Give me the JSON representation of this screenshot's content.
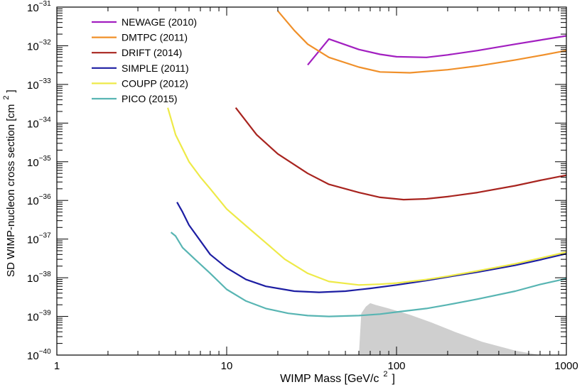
{
  "chart_data": {
    "type": "line",
    "xlabel_main": "WIMP Mass [GeV/c",
    "xlabel_sup": "2",
    "xlabel_tail": "]",
    "ylabel_main": "SD WIMP-nucleon cross section [cm",
    "ylabel_sup": "2",
    "ylabel_tail": "]",
    "x_scale": "log",
    "y_scale": "log",
    "xlim": [
      1,
      1000
    ],
    "ylim": [
      1e-40,
      1e-31
    ],
    "x_ticks": [
      {
        "value": 1,
        "label": "1"
      },
      {
        "value": 10,
        "label": "10"
      },
      {
        "value": 100,
        "label": "100"
      },
      {
        "value": 1000,
        "label": "1000"
      }
    ],
    "y_ticks": [
      {
        "value": 1e-40,
        "base": "10",
        "exp": "−40"
      },
      {
        "value": 1e-39,
        "base": "10",
        "exp": "−39"
      },
      {
        "value": 1e-38,
        "base": "10",
        "exp": "−38"
      },
      {
        "value": 1e-37,
        "base": "10",
        "exp": "−37"
      },
      {
        "value": 1e-36,
        "base": "10",
        "exp": "−36"
      },
      {
        "value": 1e-35,
        "base": "10",
        "exp": "−35"
      },
      {
        "value": 1e-34,
        "base": "10",
        "exp": "−34"
      },
      {
        "value": 1e-33,
        "base": "10",
        "exp": "−33"
      },
      {
        "value": 1e-32,
        "base": "10",
        "exp": "−32"
      },
      {
        "value": 1e-31,
        "base": "10",
        "exp": "−31"
      }
    ],
    "grid": false,
    "legend_position": "top-left",
    "series": [
      {
        "name": "NEWAGE (2010)",
        "color": "#a21fc0",
        "points": [
          [
            30,
            3.2e-33
          ],
          [
            40,
            1.5e-32
          ],
          [
            60,
            8e-33
          ],
          [
            80,
            6e-33
          ],
          [
            100,
            5.2e-33
          ],
          [
            150,
            5e-33
          ],
          [
            200,
            5.8e-33
          ],
          [
            300,
            7.5e-33
          ],
          [
            500,
            1.1e-32
          ],
          [
            700,
            1.4e-32
          ],
          [
            1000,
            1.8e-32
          ]
        ]
      },
      {
        "name": "DMTPC (2011)",
        "color": "#f0902a",
        "points": [
          [
            20,
            8e-32
          ],
          [
            25,
            2.5e-32
          ],
          [
            30,
            1.1e-32
          ],
          [
            40,
            5e-33
          ],
          [
            60,
            2.8e-33
          ],
          [
            80,
            2.1e-33
          ],
          [
            120,
            2e-33
          ],
          [
            200,
            2.4e-33
          ],
          [
            300,
            3e-33
          ],
          [
            500,
            4.3e-33
          ],
          [
            700,
            5.6e-33
          ],
          [
            1000,
            7.5e-33
          ]
        ]
      },
      {
        "name": "DRIFT (2014)",
        "color": "#a8241f",
        "points": [
          [
            11.3,
            2.5e-34
          ],
          [
            15,
            5e-35
          ],
          [
            20,
            1.6e-35
          ],
          [
            30,
            5e-36
          ],
          [
            40,
            2.6e-36
          ],
          [
            60,
            1.6e-36
          ],
          [
            80,
            1.2e-36
          ],
          [
            110,
            1.05e-36
          ],
          [
            150,
            1.1e-36
          ],
          [
            200,
            1.25e-36
          ],
          [
            300,
            1.6e-36
          ],
          [
            500,
            2.4e-36
          ],
          [
            700,
            3.3e-36
          ],
          [
            1000,
            4.5e-36
          ]
        ]
      },
      {
        "name": "SIMPLE (2011)",
        "color": "#1d1ea3",
        "points": [
          [
            5.1,
            9e-37
          ],
          [
            5.5,
            5e-37
          ],
          [
            6,
            2.3e-37
          ],
          [
            7,
            9e-38
          ],
          [
            8,
            4e-38
          ],
          [
            10,
            1.8e-38
          ],
          [
            13,
            9e-39
          ],
          [
            17,
            6e-39
          ],
          [
            25,
            4.5e-39
          ],
          [
            35,
            4.2e-39
          ],
          [
            50,
            4.5e-39
          ],
          [
            70,
            5.3e-39
          ],
          [
            100,
            6.5e-39
          ],
          [
            150,
            8.5e-39
          ],
          [
            200,
            1.05e-38
          ],
          [
            300,
            1.4e-38
          ],
          [
            500,
            2.1e-38
          ],
          [
            700,
            2.9e-38
          ],
          [
            1000,
            4.2e-38
          ]
        ]
      },
      {
        "name": "COUPP (2012)",
        "color": "#eeea48",
        "points": [
          [
            4.5,
            2.5e-34
          ],
          [
            5,
            5e-35
          ],
          [
            6,
            1e-35
          ],
          [
            7,
            4e-36
          ],
          [
            8,
            2e-36
          ],
          [
            10,
            6e-37
          ],
          [
            13,
            2.2e-37
          ],
          [
            17,
            8e-38
          ],
          [
            22,
            3e-38
          ],
          [
            30,
            1.3e-38
          ],
          [
            40,
            8e-39
          ],
          [
            60,
            6.5e-39
          ],
          [
            80,
            6.8e-39
          ],
          [
            100,
            7.3e-39
          ],
          [
            150,
            9e-39
          ],
          [
            200,
            1.1e-38
          ],
          [
            300,
            1.5e-38
          ],
          [
            500,
            2.3e-38
          ],
          [
            700,
            3.2e-38
          ],
          [
            1000,
            4.6e-38
          ]
        ]
      },
      {
        "name": "PICO (2015)",
        "color": "#58b5b3",
        "points": [
          [
            4.7,
            1.5e-37
          ],
          [
            5,
            1.2e-37
          ],
          [
            5.5,
            6e-38
          ],
          [
            6.5,
            3e-38
          ],
          [
            8,
            1.3e-38
          ],
          [
            10,
            5e-39
          ],
          [
            13,
            2.5e-39
          ],
          [
            17,
            1.6e-39
          ],
          [
            23,
            1.2e-39
          ],
          [
            30,
            1.05e-39
          ],
          [
            40,
            1e-39
          ],
          [
            60,
            1.05e-39
          ],
          [
            80,
            1.15e-39
          ],
          [
            100,
            1.3e-39
          ],
          [
            150,
            1.6e-39
          ],
          [
            200,
            2e-39
          ],
          [
            300,
            2.8e-39
          ],
          [
            500,
            4.5e-39
          ],
          [
            700,
            6.7e-39
          ],
          [
            1000,
            9.5e-39
          ]
        ]
      }
    ],
    "shaded_region": {
      "color": "#a8a8a8",
      "polygon": [
        [
          60,
          1e-40
        ],
        [
          62,
          1.2e-39
        ],
        [
          66,
          1.8e-39
        ],
        [
          70,
          2.2e-39
        ],
        [
          75,
          2e-39
        ],
        [
          90,
          1.6e-39
        ],
        [
          120,
          1.1e-39
        ],
        [
          160,
          7e-40
        ],
        [
          220,
          4e-40
        ],
        [
          320,
          2.2e-40
        ],
        [
          500,
          1.3e-40
        ],
        [
          700,
          1e-40
        ]
      ]
    }
  }
}
